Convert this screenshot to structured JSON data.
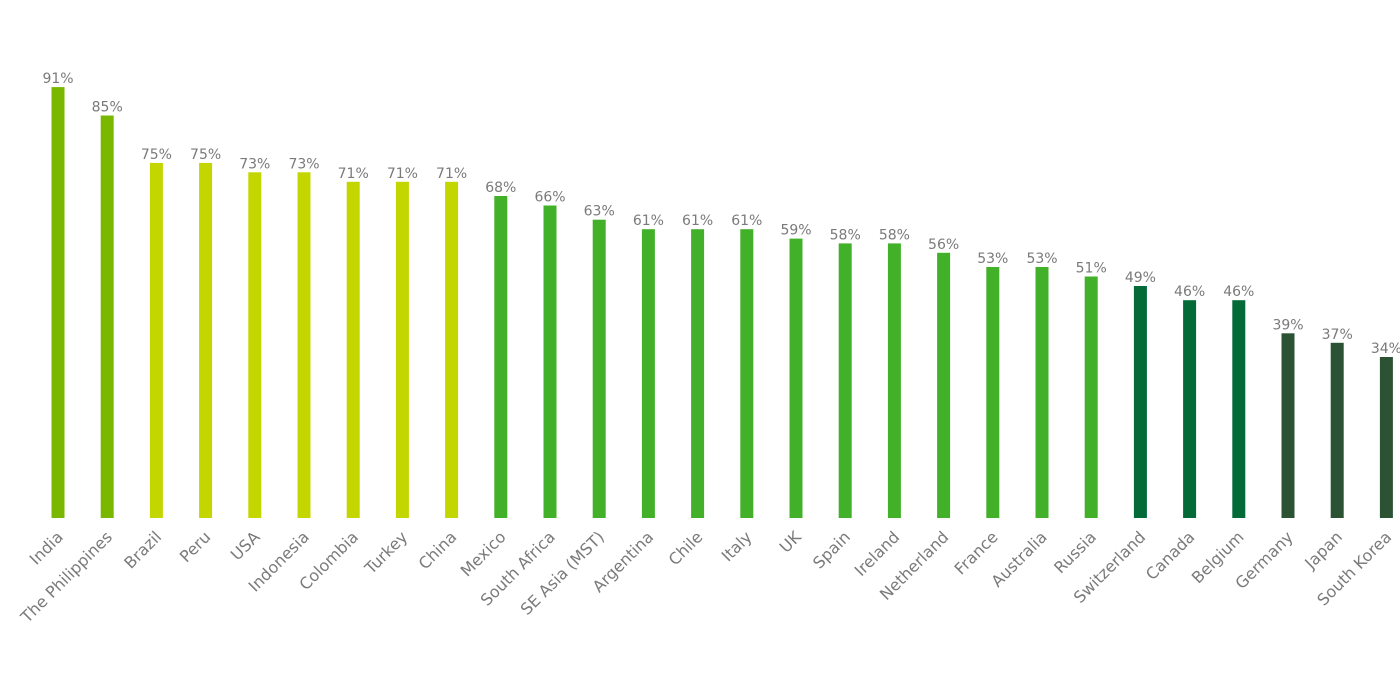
{
  "chart_data": {
    "type": "bar",
    "title": "",
    "xlabel": "",
    "ylabel": "",
    "ylim": [
      0,
      100
    ],
    "grid": false,
    "legend": "none",
    "value_suffix": "%",
    "categories": [
      "India",
      "The Philippines",
      "Brazil",
      "Peru",
      "USA",
      "Indonesia",
      "Colombia",
      "Turkey",
      "China",
      "Mexico",
      "South Africa",
      "SE Asia (MST)",
      "Argentina",
      "Chile",
      "Italy",
      "UK",
      "Spain",
      "Ireland",
      "Netherland",
      "France",
      "Australia",
      "Russia",
      "Switzerland",
      "Canada",
      "Belgium",
      "Germany",
      "Japan",
      "South Korea"
    ],
    "values": [
      91,
      85,
      75,
      75,
      73,
      73,
      71,
      71,
      71,
      68,
      66,
      63,
      61,
      61,
      61,
      59,
      58,
      58,
      56,
      53,
      53,
      51,
      49,
      46,
      46,
      39,
      37,
      34
    ],
    "value_labels": [
      "91%",
      "85%",
      "75%",
      "75%",
      "73%",
      "73%",
      "71%",
      "71%",
      "71%",
      "68%",
      "66%",
      "63%",
      "61%",
      "61%",
      "61%",
      "59%",
      "58%",
      "58%",
      "56%",
      "53%",
      "53%",
      "51%",
      "49%",
      "46%",
      "46%",
      "39%",
      "37%",
      "34%"
    ],
    "bar_colors": [
      "#7ab800",
      "#7ab800",
      "#c4d600",
      "#c4d600",
      "#c4d600",
      "#c4d600",
      "#c4d600",
      "#c4d600",
      "#c4d600",
      "#43b02a",
      "#43b02a",
      "#43b02a",
      "#43b02a",
      "#43b02a",
      "#43b02a",
      "#43b02a",
      "#43b02a",
      "#43b02a",
      "#43b02a",
      "#43b02a",
      "#43b02a",
      "#43b02a",
      "#046a38",
      "#046a38",
      "#046a38",
      "#2c5234",
      "#2c5234",
      "#2c5234"
    ]
  }
}
